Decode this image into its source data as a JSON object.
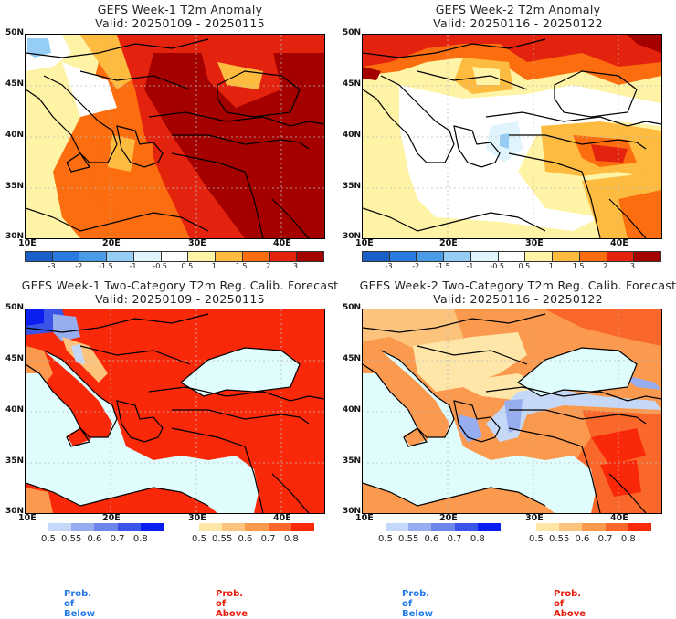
{
  "panels": [
    {
      "id": "w1-anom",
      "title": "GEFS Week-1 T2m Anomaly",
      "valid": "Valid: 20250109 - 20250115",
      "type": "anomaly"
    },
    {
      "id": "w2-anom",
      "title": "GEFS Week-2 T2m Anomaly",
      "valid": "Valid: 20250116 - 20250122",
      "type": "anomaly"
    },
    {
      "id": "w1-prob",
      "title": "GEFS Week-1 Two-Category T2m Reg. Calib. Forecast",
      "valid": "Valid: 20250109 - 20250115",
      "type": "probability"
    },
    {
      "id": "w2-prob",
      "title": "GEFS Week-2 Two-Category T2m Reg. Calib. Forecast",
      "valid": "Valid: 20250116 - 20250122",
      "type": "probability"
    }
  ],
  "axes": {
    "lat_labels": [
      "50N",
      "45N",
      "40N",
      "35N",
      "30N"
    ],
    "lon_labels": [
      "10E",
      "20E",
      "30E",
      "40E"
    ],
    "lat_range": [
      30,
      50
    ],
    "lon_range": [
      10,
      45
    ]
  },
  "anomaly_colorbar": {
    "labels": [
      "-3",
      "-2",
      "-1.5",
      "-1",
      "-0.5",
      "0.5",
      "1",
      "1.5",
      "2",
      "3"
    ],
    "colors": [
      "#1a5fc8",
      "#2a7be0",
      "#4a9ae8",
      "#96cdf5",
      "#dff4fc",
      "#ffffff",
      "#fff3a6",
      "#fdbb40",
      "#fb6d0e",
      "#e3230e",
      "#a40000"
    ]
  },
  "prob_below_colorbar": {
    "labels": [
      "0.5",
      "0.55",
      "0.6",
      "0.7",
      "0.8"
    ],
    "colors": [
      "#c6d8f7",
      "#96aef0",
      "#6c86ea",
      "#3954e6",
      "#0a1ef0"
    ],
    "caption": "Prob. of Below",
    "caption_color": "#1e78e6"
  },
  "prob_above_colorbar": {
    "labels": [
      "0.5",
      "0.55",
      "0.6",
      "0.7",
      "0.8"
    ],
    "colors": [
      "#fde6a8",
      "#fcc37c",
      "#fb9a4e",
      "#f9682a",
      "#f92808"
    ],
    "caption": "Prob. of Above",
    "caption_color": "#e81a0a"
  },
  "colors": {
    "sea_fill": "#e0fdfe",
    "land_week1_prob": "#f92808",
    "gridline": "#bbbbbb"
  }
}
